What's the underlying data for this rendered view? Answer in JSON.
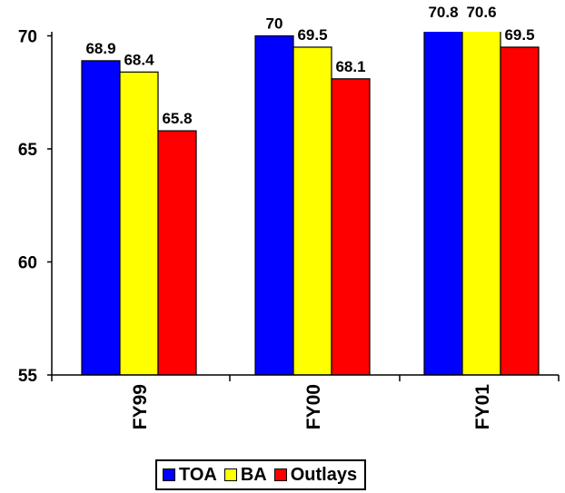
{
  "chart_data": {
    "type": "bar",
    "categories": [
      "FY99",
      "FY00",
      "FY01"
    ],
    "series": [
      {
        "name": "TOA",
        "values": [
          68.9,
          70,
          70.8
        ],
        "color": "#0000ff"
      },
      {
        "name": "BA",
        "values": [
          68.4,
          69.5,
          70.6
        ],
        "color": "#ffff00"
      },
      {
        "name": "Outlays",
        "values": [
          65.8,
          68.1,
          69.5
        ],
        "color": "#ff0000"
      }
    ],
    "ylim": [
      55,
      70
    ],
    "yticks": [
      "55",
      "60",
      "65",
      "70"
    ],
    "data_labels": [
      [
        "68.9",
        "68.4",
        "65.8"
      ],
      [
        "70",
        "69.5",
        "68.1"
      ],
      [
        "70.8",
        "70.6",
        "69.5"
      ]
    ],
    "title": "",
    "xlabel": "",
    "ylabel": "",
    "grid": false,
    "legend_position": "bottom-center",
    "category_label_orientation": "vertical"
  }
}
